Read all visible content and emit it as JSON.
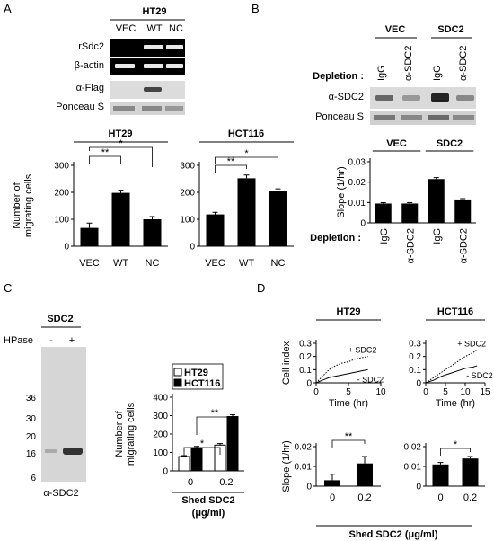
{
  "panels": {
    "A": {
      "letter": "A",
      "blot": {
        "cell_line": "HT29",
        "lanes": [
          "VEC",
          "WT",
          "NC"
        ],
        "rows": [
          "rSdc2",
          "β-actin",
          "α-Flag",
          "Ponceau S"
        ]
      }
    },
    "B": {
      "letter": "B",
      "groups": [
        "VEC",
        "SDC2"
      ],
      "depletion_label": "Depletion :",
      "lanes": [
        "IgG",
        "α-SDC2",
        "IgG",
        "α-SDC2"
      ],
      "rows": [
        "α-SDC2",
        "Ponceau S"
      ]
    },
    "C": {
      "letter": "C",
      "blot": {
        "title": "SDC2",
        "treatment_label": "HPase",
        "lane_signs": [
          "-",
          "+"
        ],
        "markers": [
          "36",
          "30",
          "20",
          "16",
          "6"
        ],
        "footer": "α-SDC2"
      }
    },
    "D": {
      "letter": "D",
      "footer": "Shed SDC2 (μg/ml)"
    }
  },
  "chart_data": [
    {
      "id": "A-HT29",
      "type": "bar",
      "title": "HT29",
      "ylabel": "Number of migrating cells",
      "categories": [
        "VEC",
        "WT",
        "NC"
      ],
      "values": [
        68,
        198,
        100
      ],
      "errors": [
        18,
        10,
        10
      ],
      "ylim": [
        0,
        300
      ],
      "yticks": [
        "0",
        "100",
        "200",
        "300"
      ],
      "significance": [
        "**",
        "*"
      ]
    },
    {
      "id": "A-HCT116",
      "type": "bar",
      "title": "HCT116",
      "categories": [
        "VEC",
        "WT",
        "NC"
      ],
      "values": [
        118,
        252,
        205
      ],
      "errors": [
        8,
        12,
        8
      ],
      "ylim": [
        0,
        300
      ],
      "yticks": [
        "0",
        "100",
        "200",
        "300"
      ],
      "significance": [
        "**",
        "*"
      ]
    },
    {
      "id": "B-slope",
      "type": "bar",
      "ylabel": "Slope (1/hr)",
      "groups": [
        "VEC",
        "SDC2"
      ],
      "categories": [
        "IgG",
        "α-SDC2",
        "IgG",
        "α-SDC2"
      ],
      "values": [
        0.0095,
        0.0095,
        0.0215,
        0.0115
      ],
      "errors": [
        0.0004,
        0.0004,
        0.0007,
        0.0004
      ],
      "ylim": [
        0,
        0.03
      ],
      "yticks": [
        "0",
        "0.01",
        "0.02",
        "0.03"
      ],
      "xlabel_prefix": "Depletion :"
    },
    {
      "id": "C-migration",
      "type": "bar",
      "ylabel": "Number of migrating cells",
      "xlabel": "Shed SDC2 (μg/ml)",
      "categories": [
        "0",
        "0.2"
      ],
      "yticks": [
        "0",
        "100",
        "200",
        "300",
        "400"
      ],
      "ylim": [
        0,
        400
      ],
      "series": [
        {
          "name": "HT29",
          "values": [
            78,
            140
          ],
          "errors": [
            5,
            8
          ],
          "color": "#ffffff"
        },
        {
          "name": "HCT116",
          "values": [
            125,
            295
          ],
          "errors": [
            8,
            10
          ],
          "color": "#000000"
        }
      ],
      "significance": [
        "*",
        "**"
      ]
    },
    {
      "id": "D-HT29-index",
      "type": "line",
      "title": "HT29",
      "ylabel": "Cell index",
      "xlabel": "Time (hr)",
      "xlim": [
        0,
        10
      ],
      "ylim": [
        0,
        0.3
      ],
      "xticks": [
        "0",
        "5",
        "10"
      ],
      "yticks": [
        "0",
        "0.1",
        "0.2",
        "0.3"
      ],
      "series": [
        {
          "name": "+ SDC2",
          "dashed": true,
          "x": [
            0,
            1,
            2,
            3,
            4,
            5,
            6,
            7,
            8
          ],
          "y": [
            0,
            0.05,
            0.1,
            0.13,
            0.15,
            0.16,
            0.18,
            0.19,
            0.2
          ]
        },
        {
          "name": "- SDC2",
          "dashed": false,
          "x": [
            0,
            1,
            2,
            3,
            4,
            5,
            6,
            7,
            8
          ],
          "y": [
            0,
            0.02,
            0.04,
            0.05,
            0.06,
            0.07,
            0.08,
            0.09,
            0.1
          ]
        }
      ]
    },
    {
      "id": "D-HCT116-index",
      "type": "line",
      "title": "HCT116",
      "xlabel": "Time (hr)",
      "xlim": [
        0,
        15
      ],
      "ylim": [
        0,
        0.3
      ],
      "xticks": [
        "0",
        "5",
        "10",
        "15"
      ],
      "yticks": [
        "0",
        "0.1",
        "0.2",
        "0.3"
      ],
      "series": [
        {
          "name": "+ SDC2",
          "dashed": true,
          "x": [
            0,
            2,
            4,
            6,
            8,
            10,
            12,
            13
          ],
          "y": [
            0,
            0.04,
            0.08,
            0.12,
            0.16,
            0.2,
            0.23,
            0.25
          ]
        },
        {
          "name": "- SDC2",
          "dashed": false,
          "x": [
            0,
            2,
            4,
            6,
            8,
            10,
            12,
            13
          ],
          "y": [
            0,
            0.02,
            0.05,
            0.07,
            0.09,
            0.11,
            0.12,
            0.13
          ]
        }
      ]
    },
    {
      "id": "D-HT29-slope",
      "type": "bar",
      "ylabel": "Slope (1/hr)",
      "categories": [
        "0",
        "0.2"
      ],
      "values": [
        0.003,
        0.0115
      ],
      "errors": [
        0.003,
        0.0035
      ],
      "ylim": [
        0,
        0.02
      ],
      "yticks": [
        "0",
        "0.01",
        "0.02"
      ],
      "significance": [
        "**"
      ]
    },
    {
      "id": "D-HCT116-slope",
      "type": "bar",
      "categories": [
        "0",
        "0.2"
      ],
      "values": [
        0.011,
        0.014
      ],
      "errors": [
        0.001,
        0.001
      ],
      "ylim": [
        0,
        0.02
      ],
      "yticks": [
        "0",
        "0.01",
        "0.02"
      ],
      "significance": [
        "*"
      ]
    }
  ]
}
